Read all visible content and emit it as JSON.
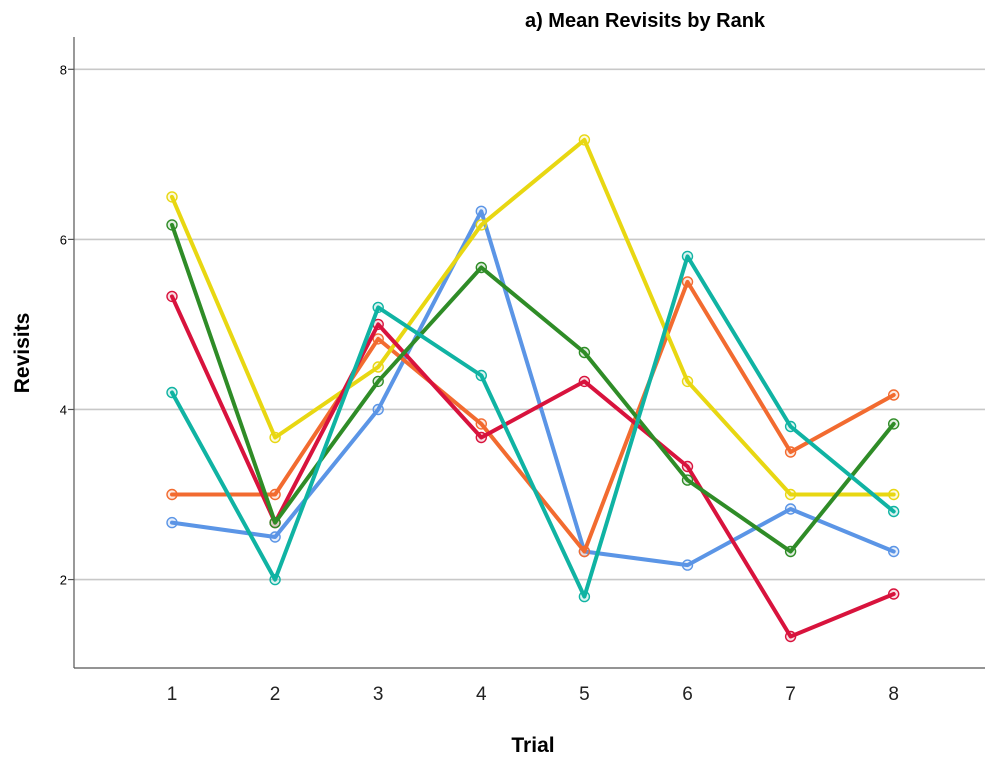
{
  "chart_data": {
    "type": "line",
    "title": "a) Mean Revisits by Rank",
    "xlabel": "Trial",
    "ylabel": "Revisits",
    "categories": [
      "1",
      "2",
      "3",
      "4",
      "5",
      "6",
      "7",
      "8"
    ],
    "y_ticks": [
      "2",
      "4",
      "6",
      "8"
    ],
    "ylim": [
      0.96,
      8.38
    ],
    "grid": true,
    "legend": "none",
    "series": [
      {
        "color": "#5b95e6",
        "values": [
          2.67,
          2.5,
          4.0,
          6.33,
          2.33,
          2.17,
          2.83,
          2.33
        ]
      },
      {
        "color": "#f26b30",
        "values": [
          3.0,
          3.0,
          4.83,
          3.83,
          2.33,
          5.5,
          3.5,
          4.17
        ]
      },
      {
        "color": "#e8d712",
        "values": [
          6.5,
          3.67,
          4.5,
          6.17,
          7.17,
          4.33,
          3.0,
          3.0
        ]
      },
      {
        "color": "#d8133d",
        "values": [
          5.33,
          2.67,
          5.0,
          3.67,
          4.33,
          3.33,
          1.33,
          1.83
        ]
      },
      {
        "color": "#2f8c27",
        "values": [
          6.17,
          2.67,
          4.33,
          5.67,
          4.67,
          3.17,
          2.33,
          3.83
        ]
      },
      {
        "color": "#10b3a3",
        "values": [
          4.2,
          2.0,
          5.2,
          4.4,
          1.8,
          5.8,
          3.8,
          2.8
        ]
      }
    ]
  }
}
